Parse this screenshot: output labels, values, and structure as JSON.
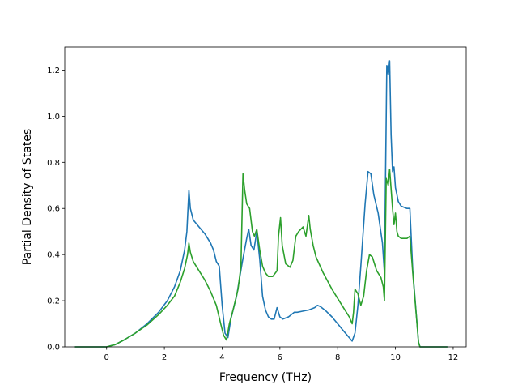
{
  "chart_data": {
    "type": "line",
    "title": "",
    "xlabel": "Frequency (THz)",
    "ylabel": "Partial Density of States",
    "xlim": [
      -1.45,
      12.45
    ],
    "ylim": [
      0.0,
      1.3
    ],
    "xticks": [
      0,
      2,
      4,
      6,
      8,
      10,
      12
    ],
    "yticks": [
      0.0,
      0.2,
      0.4,
      0.6,
      0.8,
      1.0,
      1.2
    ],
    "xtick_labels": [
      "0",
      "2",
      "4",
      "6",
      "8",
      "10",
      "12"
    ],
    "ytick_labels": [
      "0.0",
      "0.2",
      "0.4",
      "0.6",
      "0.8",
      "1.0",
      "1.2"
    ],
    "grid": false,
    "series": [
      {
        "color": "#1f77b4",
        "x": [
          -1.1,
          0.0,
          0.3,
          0.6,
          1.0,
          1.4,
          1.8,
          2.1,
          2.35,
          2.55,
          2.7,
          2.78,
          2.85,
          2.9,
          3.0,
          3.2,
          3.4,
          3.6,
          3.7,
          3.8,
          3.9,
          4.0,
          4.1,
          4.2,
          4.3,
          4.5,
          4.7,
          4.85,
          4.92,
          5.0,
          5.1,
          5.2,
          5.3,
          5.4,
          5.5,
          5.6,
          5.7,
          5.8,
          5.9,
          6.0,
          6.1,
          6.3,
          6.5,
          6.6,
          6.8,
          7.0,
          7.2,
          7.3,
          7.4,
          7.6,
          7.8,
          8.0,
          8.2,
          8.4,
          8.5,
          8.6,
          8.7,
          8.8,
          8.95,
          9.05,
          9.15,
          9.25,
          9.4,
          9.55,
          9.62,
          9.7,
          9.75,
          9.8,
          9.85,
          9.9,
          9.95,
          10.0,
          10.05,
          10.1,
          10.2,
          10.4,
          10.5,
          10.6,
          10.8,
          10.85,
          11.0,
          11.8
        ],
        "y": [
          0.0,
          0.0,
          0.01,
          0.03,
          0.06,
          0.1,
          0.15,
          0.2,
          0.26,
          0.33,
          0.42,
          0.5,
          0.68,
          0.6,
          0.55,
          0.52,
          0.49,
          0.45,
          0.42,
          0.37,
          0.35,
          0.18,
          0.06,
          0.04,
          0.12,
          0.22,
          0.37,
          0.47,
          0.51,
          0.44,
          0.42,
          0.5,
          0.38,
          0.22,
          0.16,
          0.13,
          0.12,
          0.12,
          0.17,
          0.13,
          0.12,
          0.13,
          0.15,
          0.15,
          0.155,
          0.16,
          0.17,
          0.18,
          0.175,
          0.155,
          0.13,
          0.1,
          0.07,
          0.04,
          0.025,
          0.06,
          0.18,
          0.35,
          0.62,
          0.76,
          0.75,
          0.66,
          0.58,
          0.45,
          0.32,
          1.22,
          1.18,
          1.24,
          0.92,
          0.76,
          0.78,
          0.69,
          0.66,
          0.63,
          0.61,
          0.6,
          0.6,
          0.33,
          0.02,
          0.0,
          0.0,
          0.0
        ]
      },
      {
        "color": "#2ca02c",
        "x": [
          -1.1,
          0.0,
          0.3,
          0.6,
          1.0,
          1.4,
          1.8,
          2.1,
          2.35,
          2.55,
          2.7,
          2.8,
          2.85,
          2.9,
          3.0,
          3.2,
          3.4,
          3.6,
          3.8,
          3.95,
          4.05,
          4.15,
          4.25,
          4.4,
          4.55,
          4.65,
          4.72,
          4.78,
          4.85,
          4.95,
          5.05,
          5.12,
          5.2,
          5.3,
          5.4,
          5.5,
          5.6,
          5.75,
          5.9,
          5.95,
          6.02,
          6.08,
          6.2,
          6.35,
          6.45,
          6.55,
          6.65,
          6.8,
          6.9,
          7.0,
          7.05,
          7.15,
          7.25,
          7.5,
          7.8,
          8.0,
          8.2,
          8.4,
          8.5,
          8.55,
          8.6,
          8.7,
          8.8,
          8.9,
          9.0,
          9.1,
          9.2,
          9.35,
          9.5,
          9.58,
          9.62,
          9.68,
          9.75,
          9.8,
          9.9,
          9.95,
          10.0,
          10.05,
          10.1,
          10.2,
          10.4,
          10.5,
          10.6,
          10.8,
          10.85,
          11.0,
          11.8
        ],
        "y": [
          0.0,
          0.0,
          0.01,
          0.03,
          0.06,
          0.095,
          0.14,
          0.18,
          0.22,
          0.28,
          0.34,
          0.4,
          0.45,
          0.41,
          0.37,
          0.33,
          0.29,
          0.24,
          0.18,
          0.1,
          0.05,
          0.03,
          0.1,
          0.17,
          0.25,
          0.35,
          0.75,
          0.68,
          0.62,
          0.6,
          0.5,
          0.48,
          0.51,
          0.42,
          0.35,
          0.32,
          0.305,
          0.305,
          0.33,
          0.48,
          0.56,
          0.44,
          0.36,
          0.345,
          0.375,
          0.48,
          0.5,
          0.52,
          0.48,
          0.57,
          0.51,
          0.44,
          0.39,
          0.32,
          0.25,
          0.21,
          0.17,
          0.13,
          0.1,
          0.15,
          0.25,
          0.23,
          0.18,
          0.22,
          0.33,
          0.4,
          0.39,
          0.33,
          0.3,
          0.26,
          0.2,
          0.73,
          0.7,
          0.77,
          0.6,
          0.53,
          0.58,
          0.5,
          0.48,
          0.47,
          0.47,
          0.48,
          0.32,
          0.02,
          0.0,
          0.0,
          0.0
        ]
      }
    ]
  }
}
